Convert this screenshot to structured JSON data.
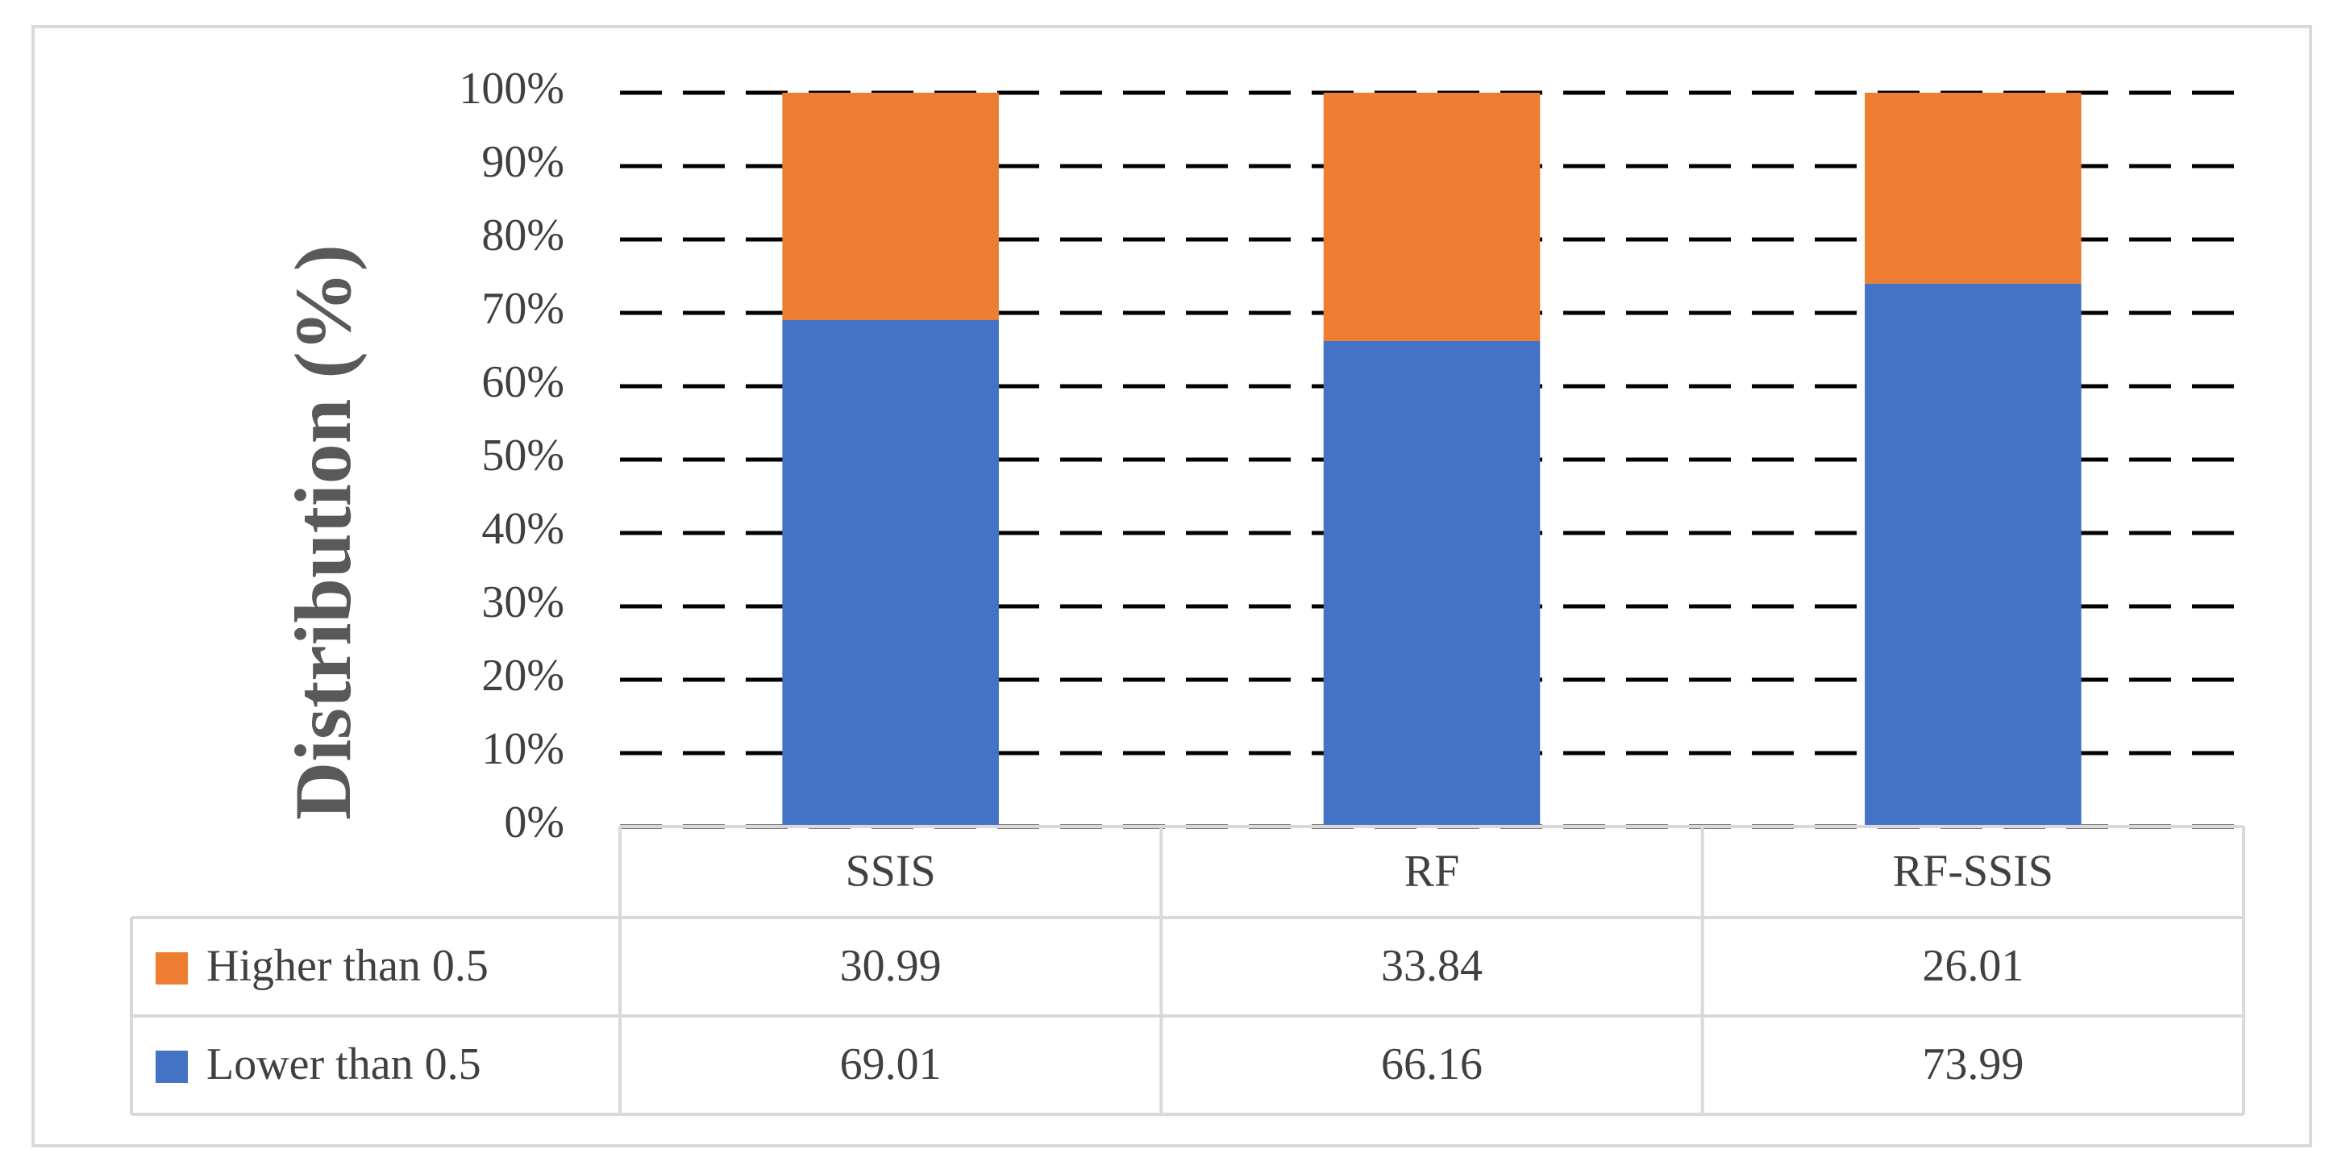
{
  "chart_data": {
    "type": "stacked_bar",
    "y_label": "Distribution (%)",
    "categories": [
      "SSIS",
      "RF",
      "RF-SSIS"
    ],
    "series": [
      {
        "name": "Lower than 0.5",
        "color": "#4472c4",
        "values": [
          69.01,
          66.16,
          73.99
        ]
      },
      {
        "name": "Higher than 0.5",
        "color": "#ed7d31",
        "values": [
          30.99,
          33.84,
          26.01
        ]
      }
    ],
    "ylim": [
      0,
      100
    ],
    "yticks": [
      {
        "value": 0,
        "label": "0%"
      },
      {
        "value": 10,
        "label": "10%"
      },
      {
        "value": 20,
        "label": "20%"
      },
      {
        "value": 30,
        "label": "30%"
      },
      {
        "value": 40,
        "label": "40%"
      },
      {
        "value": 50,
        "label": "50%"
      },
      {
        "value": 60,
        "label": "60%"
      },
      {
        "value": 70,
        "label": "70%"
      },
      {
        "value": 80,
        "label": "80%"
      },
      {
        "value": 90,
        "label": "90%"
      },
      {
        "value": 100,
        "label": "100%"
      }
    ],
    "grid": true,
    "data_table": true
  }
}
